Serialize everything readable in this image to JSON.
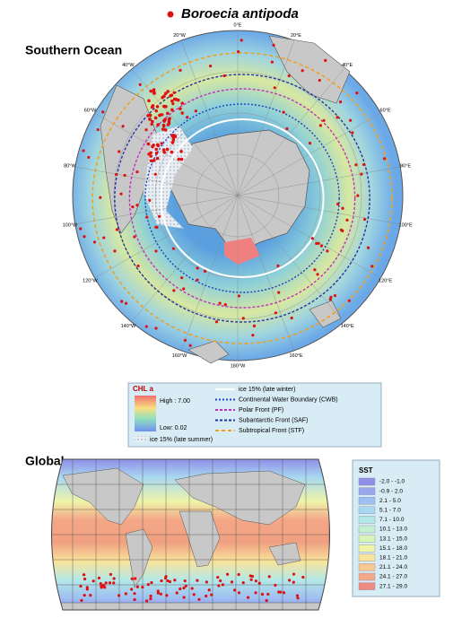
{
  "title": "Boroecia antipoda",
  "southern_ocean": {
    "heading": "Southern Ocean",
    "longitudes": [
      "0°E",
      "20°E",
      "40°E",
      "60°E",
      "80°E",
      "100°E",
      "120°E",
      "140°E",
      "160°E",
      "180°W",
      "160°W",
      "140°W",
      "120°W",
      "100°W",
      "80°W",
      "60°W",
      "40°W",
      "20°W"
    ],
    "legend": {
      "chl_title": "CHL a",
      "chl_high": "High : 7.00",
      "chl_low": "Low: 0.02",
      "ice_summer": "ice 15% (late summer)",
      "lines": [
        {
          "label": "ice 15% (late winter)",
          "color": "#ffffff"
        },
        {
          "label": "Continental Water Boundary (CWB)",
          "color": "#1a3fbf"
        },
        {
          "label": "Polar Front (PF)",
          "color": "#c030c0"
        },
        {
          "label": "Subantarctic Front (SAF)",
          "color": "#2233aa"
        },
        {
          "label": "Subtropical Front (STF)",
          "color": "#f0a020"
        }
      ]
    }
  },
  "global": {
    "heading": "Global",
    "sst": {
      "title": "SST",
      "items": [
        {
          "label": "-2.0 - -1.0",
          "color": "#8f8fe8"
        },
        {
          "label": "-0.9 - 2.0",
          "color": "#99a8ee"
        },
        {
          "label": "2.1 - 5.0",
          "color": "#9fc0f2"
        },
        {
          "label": "5.1 - 7.0",
          "color": "#a8d8f0"
        },
        {
          "label": "7.1 - 10.0",
          "color": "#b4e8e6"
        },
        {
          "label": "10.1 - 13.0",
          "color": "#c4f0d0"
        },
        {
          "label": "13.1 - 15.0",
          "color": "#d8f4b8"
        },
        {
          "label": "15.1 - 18.0",
          "color": "#eef4a8"
        },
        {
          "label": "18.1 - 21.0",
          "color": "#f8e49c"
        },
        {
          "label": "21.1 - 24.0",
          "color": "#f8c890"
        },
        {
          "label": "24.1 - 27.0",
          "color": "#f4a888"
        },
        {
          "label": "27.1 - 29.0",
          "color": "#ee8c84"
        }
      ]
    }
  }
}
